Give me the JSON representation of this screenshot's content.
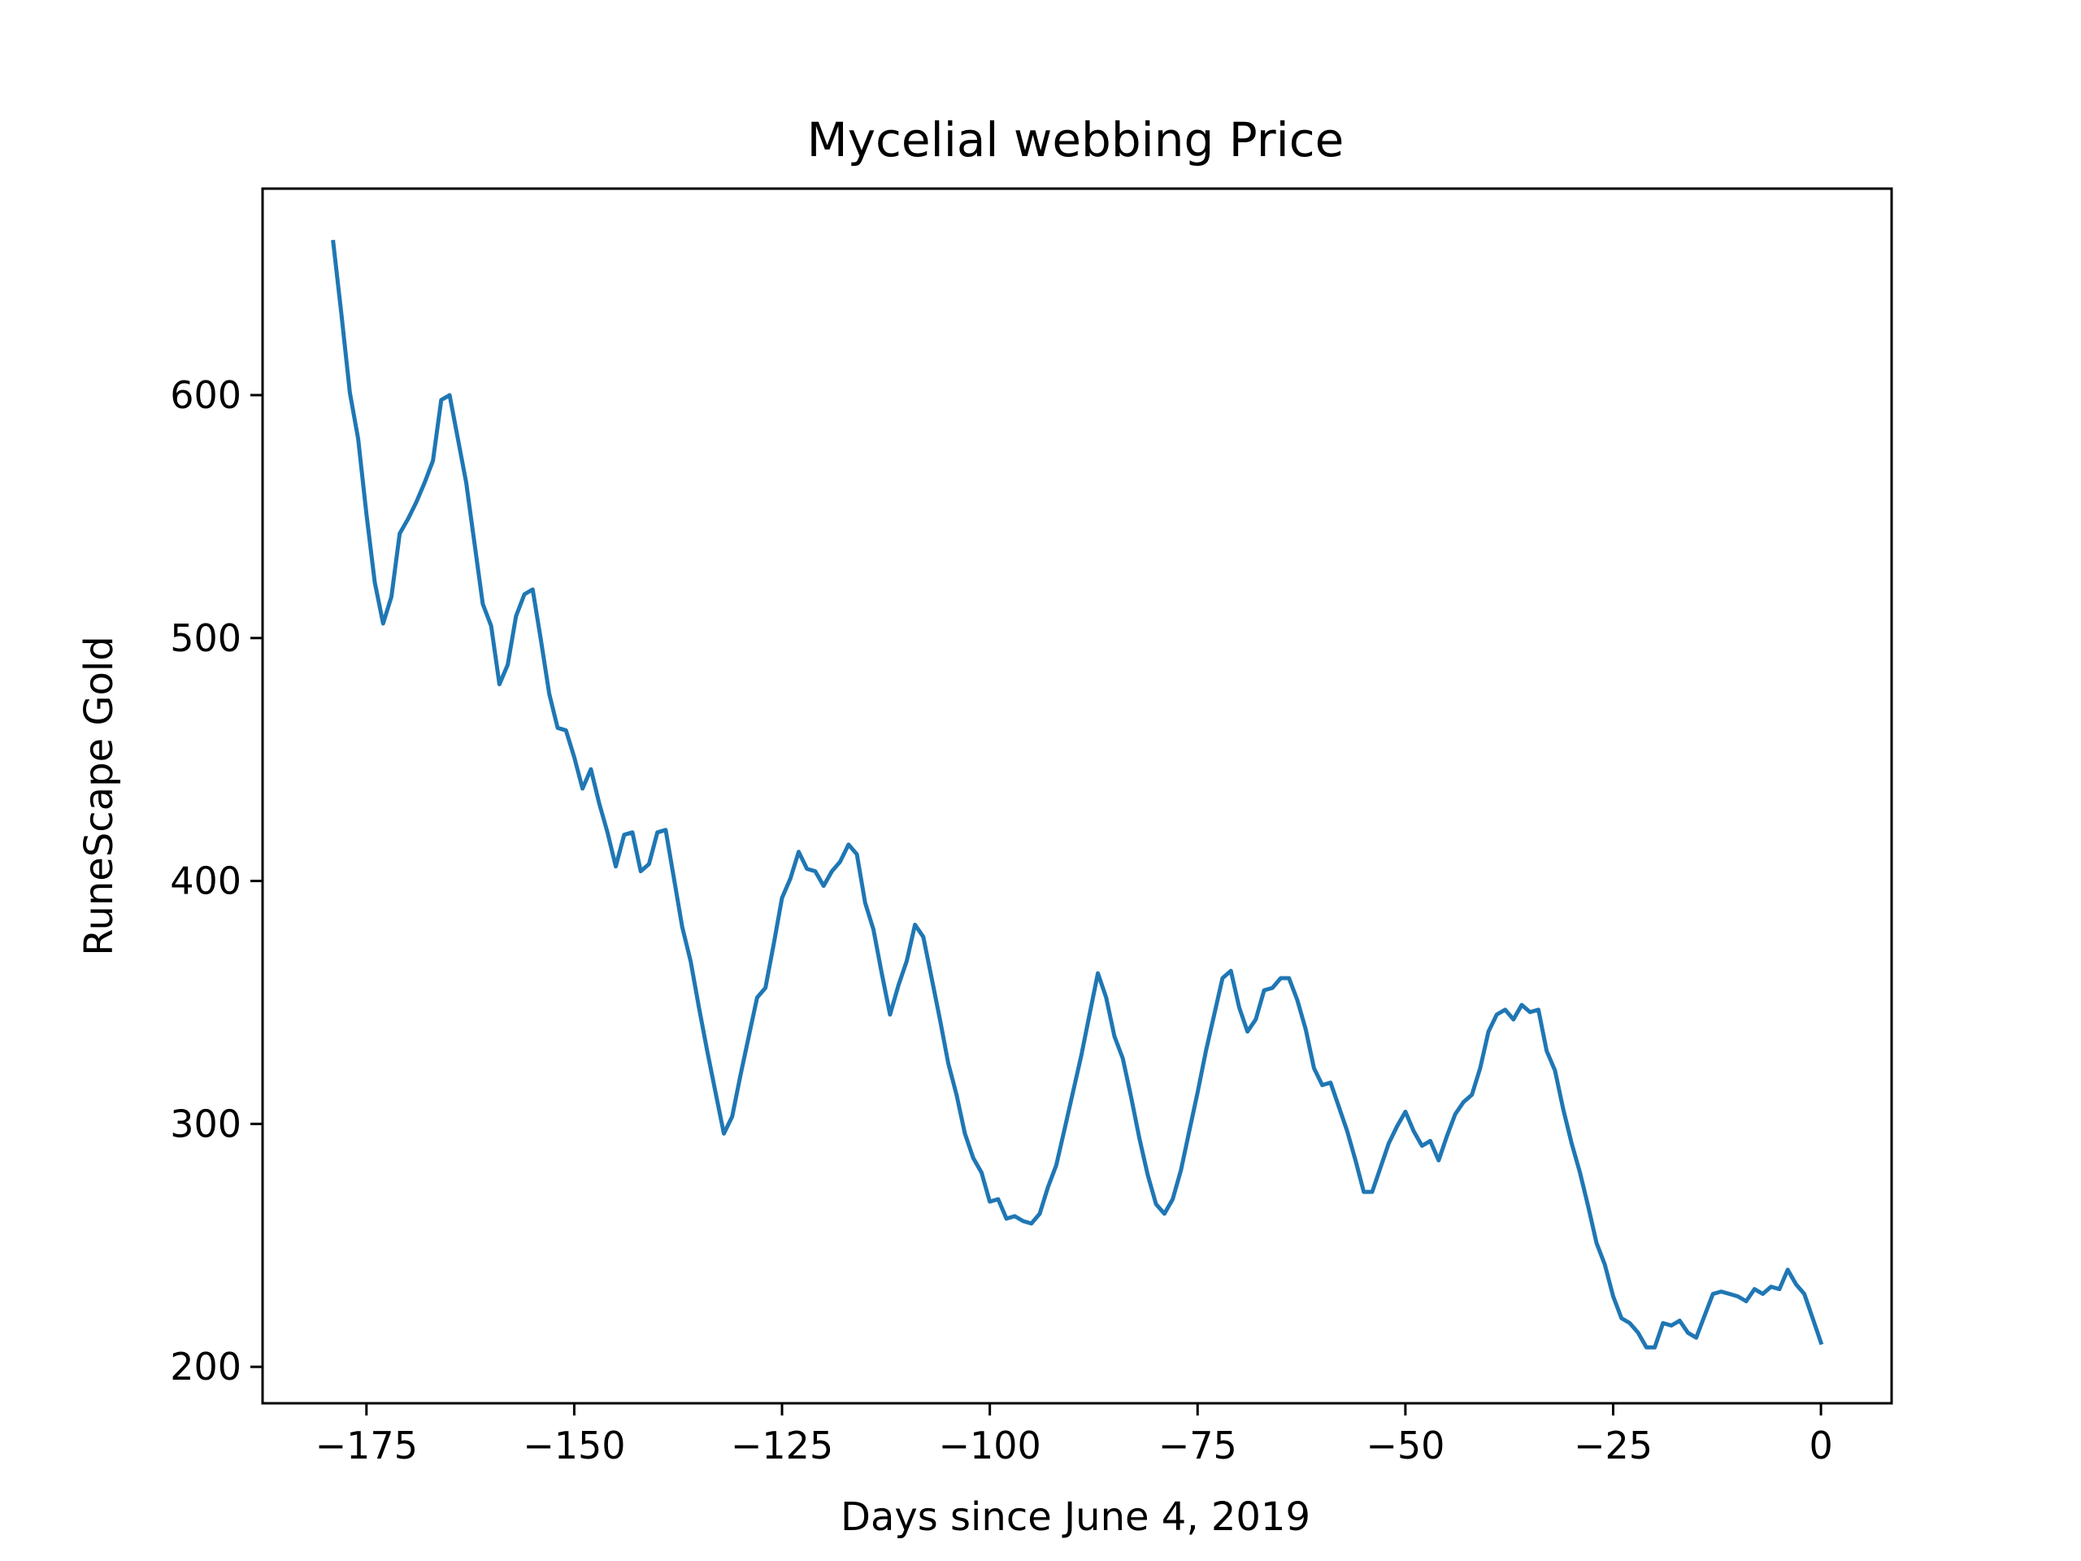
{
  "chart_data": {
    "type": "line",
    "title": "Mycelial webbing Price",
    "xlabel": "Days since June 4, 2019",
    "ylabel": "RuneScape Gold",
    "xlim": [
      -187.5,
      8.5
    ],
    "ylim": [
      185,
      685
    ],
    "xticks": [
      -175,
      -150,
      -125,
      -100,
      -75,
      -50,
      -25,
      0
    ],
    "xtick_labels": [
      "−175",
      "−150",
      "−125",
      "−100",
      "−75",
      "−50",
      "−25",
      "0"
    ],
    "yticks": [
      200,
      300,
      400,
      500,
      600
    ],
    "ytick_labels": [
      "200",
      "300",
      "400",
      "500",
      "600"
    ],
    "grid": false,
    "color": "#1f77b4",
    "series": [
      {
        "x": [
          -179,
          -178,
          -177,
          -176,
          -175,
          -174,
          -173,
          -172,
          -171,
          -170,
          -169,
          -168,
          -167,
          -166,
          -165,
          -164,
          -163,
          -162,
          -161,
          -160,
          -159,
          -158,
          -157,
          -156,
          -155,
          -154,
          -153,
          -152,
          -151,
          -150,
          -149,
          -148,
          -147,
          -146,
          -145,
          -144,
          -143,
          -142,
          -141,
          -140,
          -139,
          -138,
          -137,
          -136,
          -135,
          -134,
          -133,
          -132,
          -131,
          -130,
          -129,
          -128,
          -127,
          -126,
          -125,
          -124,
          -123,
          -122,
          -121,
          -120,
          -119,
          -118,
          -117,
          -116,
          -115,
          -114,
          -113,
          -112,
          -111,
          -110,
          -109,
          -108,
          -107,
          -106,
          -105,
          -104,
          -103,
          -102,
          -101,
          -100,
          -99,
          -98,
          -97,
          -96,
          -95,
          -94,
          -93,
          -92,
          -91,
          -90,
          -89,
          -88,
          -87,
          -86,
          -85,
          -84,
          -83,
          -82,
          -81,
          -80,
          -79,
          -78,
          -77,
          -76,
          -75,
          -74,
          -73,
          -72,
          -71,
          -70,
          -69,
          -68,
          -67,
          -66,
          -65,
          -64,
          -63,
          -62,
          -61,
          -60,
          -59,
          -58,
          -57,
          -56,
          -55,
          -54,
          -53,
          -52,
          -51,
          -50,
          -49,
          -48,
          -47,
          -46,
          -45,
          -44,
          -43,
          -42,
          -41,
          -40,
          -39,
          -38,
          -37,
          -36,
          -35,
          -34,
          -33,
          -32,
          -31,
          -30,
          -29,
          -28,
          -27,
          -26,
          -25,
          -24,
          -23,
          -22,
          -21,
          -20,
          -19,
          -18,
          -17,
          -16,
          -15,
          -14,
          -13,
          -12,
          -11,
          -10,
          -9,
          -8,
          -7,
          -6,
          -5,
          -4,
          -3,
          -2,
          -1,
          0
        ],
        "y": [
          663,
          633,
          601,
          582,
          551,
          523,
          506,
          517,
          543,
          549,
          556,
          564,
          573,
          598,
          600,
          582,
          564,
          539,
          514,
          505,
          481,
          489,
          509,
          518,
          520,
          499,
          477,
          463,
          462,
          451,
          438,
          446,
          432,
          420,
          406,
          419,
          420,
          404,
          407,
          420,
          421,
          401,
          381,
          367,
          348,
          330,
          313,
          296,
          303,
          320,
          336,
          352,
          356,
          374,
          393,
          401,
          412,
          405,
          404,
          398,
          404,
          408,
          415,
          411,
          391,
          380,
          362,
          345,
          357,
          367,
          382,
          377,
          360,
          343,
          325,
          312,
          296,
          286,
          280,
          268,
          269,
          261,
          262,
          260,
          259,
          263,
          274,
          283,
          298,
          313,
          328,
          345,
          362,
          352,
          336,
          327,
          311,
          294,
          279,
          267,
          263,
          269,
          281,
          297,
          313,
          330,
          345,
          360,
          363,
          348,
          338,
          343,
          355,
          356,
          360,
          360,
          351,
          339,
          323,
          316,
          317,
          307,
          297,
          285,
          272,
          272,
          282,
          292,
          299,
          305,
          297,
          291,
          293,
          285,
          295,
          304,
          309,
          312,
          323,
          338,
          345,
          347,
          343,
          349,
          346,
          347,
          330,
          322,
          306,
          292,
          280,
          266,
          251,
          242,
          229,
          220,
          218,
          214,
          208,
          208,
          218,
          217,
          219,
          214,
          212,
          221,
          230,
          231,
          230,
          229,
          227,
          232,
          230,
          233,
          232,
          240,
          234,
          230,
          220,
          210
        ]
      }
    ]
  }
}
